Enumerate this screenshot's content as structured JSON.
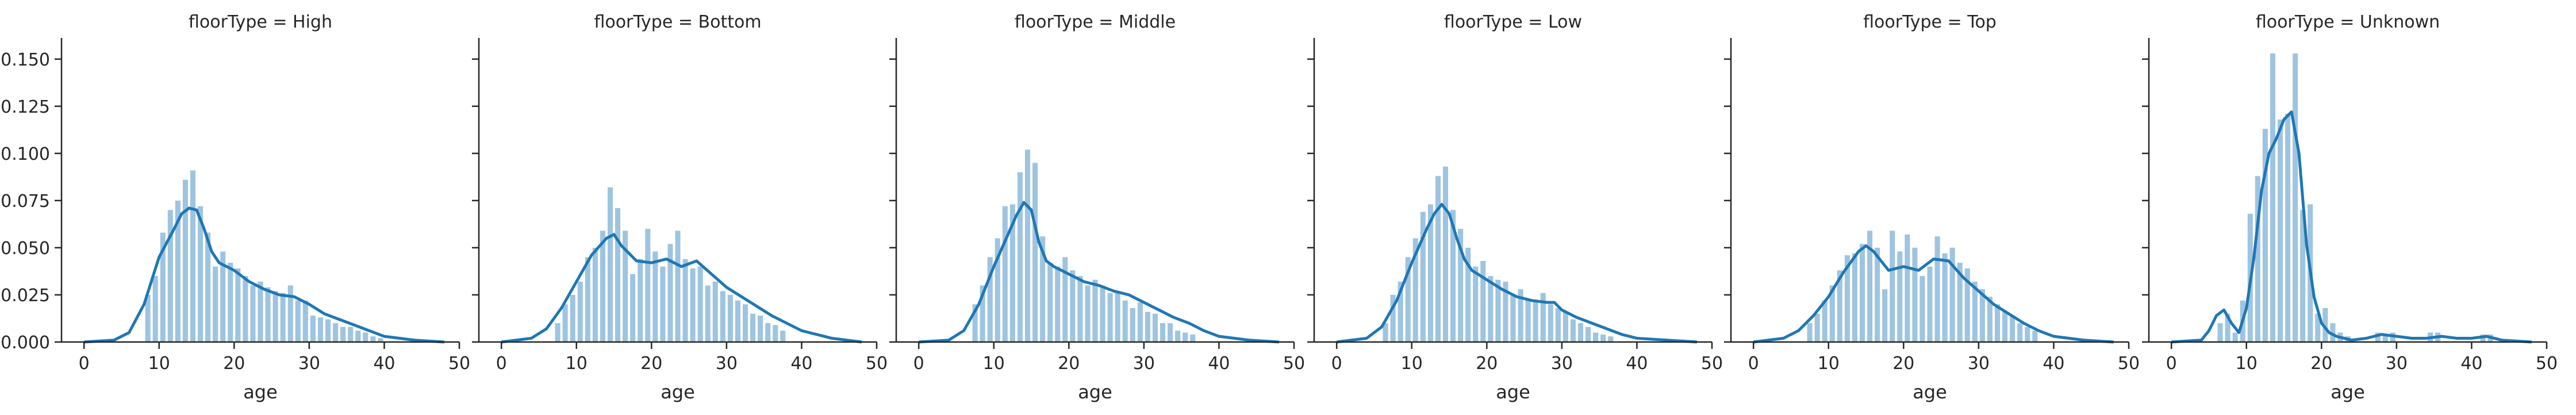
{
  "chart_data": {
    "type": "bar",
    "layout": "facet-grid",
    "shared_y": true,
    "grid": false,
    "xlabel": "age",
    "ylabel": "",
    "xlim": [
      -3,
      50
    ],
    "ylim": [
      0,
      0.16
    ],
    "xticks": [
      "0",
      "10",
      "20",
      "30",
      "40",
      "50"
    ],
    "yticks": [
      "0.000",
      "0.025",
      "0.050",
      "0.075",
      "0.100",
      "0.125",
      "0.150"
    ],
    "colors": {
      "bars": "#9ec4e0",
      "kde": "#1f77b4",
      "axis": "#262626"
    },
    "facets": [
      {
        "title": "floorType = High",
        "hist_x": [
          8.5,
          9.5,
          10.5,
          11.5,
          12.5,
          13.5,
          14.5,
          15.5,
          16.5,
          17.5,
          18.5,
          19.5,
          20.5,
          21.5,
          22.5,
          23.5,
          24.5,
          25.5,
          26.5,
          27.5,
          28.5,
          29.5,
          30.5,
          31.5,
          32.5,
          33.5,
          34.5,
          35.5,
          36.5,
          37.5,
          38.5,
          39.5
        ],
        "hist_y": [
          0.025,
          0.035,
          0.058,
          0.07,
          0.075,
          0.086,
          0.091,
          0.072,
          0.058,
          0.04,
          0.048,
          0.042,
          0.039,
          0.035,
          0.03,
          0.032,
          0.029,
          0.027,
          0.026,
          0.03,
          0.022,
          0.022,
          0.014,
          0.013,
          0.012,
          0.01,
          0.008,
          0.008,
          0.006,
          0.005,
          0.003,
          0.002
        ],
        "kde_x": [
          0,
          4,
          6,
          8,
          10,
          12,
          13,
          14,
          15,
          16,
          17,
          18,
          20,
          22,
          24,
          26,
          28,
          30,
          32,
          34,
          36,
          38,
          40,
          44,
          48
        ],
        "kde_y": [
          0.0,
          0.001,
          0.005,
          0.02,
          0.045,
          0.06,
          0.068,
          0.071,
          0.07,
          0.06,
          0.048,
          0.042,
          0.038,
          0.032,
          0.028,
          0.025,
          0.024,
          0.02,
          0.015,
          0.012,
          0.009,
          0.006,
          0.003,
          0.001,
          0.0
        ]
      },
      {
        "title": "floorType = Bottom",
        "hist_x": [
          7.5,
          8.5,
          9.5,
          10.5,
          11.5,
          12.5,
          13.5,
          14.5,
          15.5,
          16.5,
          17.5,
          18.5,
          19.5,
          20.5,
          21.5,
          22.5,
          23.5,
          24.5,
          25.5,
          26.5,
          27.5,
          28.5,
          29.5,
          30.5,
          31.5,
          32.5,
          33.5,
          34.5,
          35.5,
          36.5,
          37.5
        ],
        "hist_y": [
          0.01,
          0.02,
          0.025,
          0.032,
          0.045,
          0.05,
          0.059,
          0.082,
          0.071,
          0.059,
          0.036,
          0.044,
          0.06,
          0.048,
          0.04,
          0.052,
          0.059,
          0.044,
          0.039,
          0.04,
          0.03,
          0.032,
          0.027,
          0.025,
          0.022,
          0.02,
          0.015,
          0.014,
          0.01,
          0.009,
          0.006
        ],
        "kde_x": [
          0,
          4,
          6,
          8,
          10,
          12,
          14,
          15,
          16,
          18,
          20,
          22,
          24,
          26,
          28,
          30,
          32,
          34,
          36,
          38,
          40,
          44,
          48
        ],
        "kde_y": [
          0.0,
          0.002,
          0.007,
          0.018,
          0.032,
          0.046,
          0.055,
          0.057,
          0.051,
          0.043,
          0.042,
          0.044,
          0.04,
          0.043,
          0.036,
          0.029,
          0.024,
          0.019,
          0.014,
          0.01,
          0.006,
          0.002,
          0.0
        ]
      },
      {
        "title": "floorType = Middle",
        "hist_x": [
          7.5,
          8.5,
          9.5,
          10.5,
          11.5,
          12.5,
          13.5,
          14.5,
          15.5,
          16.5,
          17.5,
          18.5,
          19.5,
          20.5,
          21.5,
          22.5,
          23.5,
          24.5,
          25.5,
          26.5,
          27.5,
          28.5,
          29.5,
          30.5,
          31.5,
          32.5,
          33.5,
          34.5,
          35.5,
          36.5
        ],
        "hist_y": [
          0.02,
          0.03,
          0.045,
          0.055,
          0.072,
          0.073,
          0.09,
          0.102,
          0.095,
          0.056,
          0.042,
          0.04,
          0.045,
          0.038,
          0.035,
          0.03,
          0.033,
          0.03,
          0.026,
          0.027,
          0.022,
          0.018,
          0.021,
          0.016,
          0.015,
          0.01,
          0.01,
          0.006,
          0.005,
          0.004
        ],
        "kde_x": [
          0,
          4,
          6,
          8,
          10,
          12,
          13,
          14,
          15,
          16,
          17,
          18,
          20,
          22,
          24,
          26,
          28,
          30,
          32,
          34,
          36,
          38,
          40,
          44,
          48
        ],
        "kde_y": [
          0.0,
          0.001,
          0.006,
          0.02,
          0.04,
          0.058,
          0.067,
          0.074,
          0.07,
          0.053,
          0.043,
          0.04,
          0.036,
          0.032,
          0.03,
          0.027,
          0.025,
          0.021,
          0.017,
          0.013,
          0.01,
          0.006,
          0.003,
          0.001,
          0.0
        ]
      },
      {
        "title": "floorType = Low",
        "hist_x": [
          6.5,
          7.5,
          8.5,
          9.5,
          10.5,
          11.5,
          12.5,
          13.5,
          14.5,
          15.5,
          16.5,
          17.5,
          18.5,
          19.5,
          20.5,
          21.5,
          22.5,
          23.5,
          24.5,
          25.5,
          26.5,
          27.5,
          28.5,
          29.5,
          30.5,
          31.5,
          32.5,
          33.5,
          34.5,
          35.5,
          36.5
        ],
        "hist_y": [
          0.01,
          0.025,
          0.032,
          0.045,
          0.055,
          0.069,
          0.073,
          0.088,
          0.093,
          0.07,
          0.06,
          0.05,
          0.04,
          0.043,
          0.035,
          0.033,
          0.032,
          0.025,
          0.028,
          0.023,
          0.022,
          0.026,
          0.02,
          0.018,
          0.016,
          0.012,
          0.01,
          0.008,
          0.005,
          0.004,
          0.003
        ],
        "kde_x": [
          0,
          4,
          6,
          8,
          10,
          12,
          13,
          14,
          15,
          16,
          17,
          18,
          20,
          22,
          24,
          26,
          28,
          29,
          30,
          32,
          34,
          36,
          38,
          40,
          44,
          48
        ],
        "kde_y": [
          0.0,
          0.002,
          0.008,
          0.022,
          0.042,
          0.06,
          0.068,
          0.073,
          0.068,
          0.055,
          0.044,
          0.038,
          0.033,
          0.028,
          0.024,
          0.022,
          0.021,
          0.021,
          0.017,
          0.013,
          0.01,
          0.007,
          0.004,
          0.002,
          0.001,
          0.0
        ]
      },
      {
        "title": "floorType = Top",
        "hist_x": [
          7.5,
          8.5,
          9.5,
          10.5,
          11.5,
          12.5,
          13.5,
          14.5,
          15.5,
          16.5,
          17.5,
          18.5,
          19.5,
          20.5,
          21.5,
          22.5,
          23.5,
          24.5,
          25.5,
          26.5,
          27.5,
          28.5,
          29.5,
          30.5,
          31.5,
          32.5,
          33.5,
          34.5,
          35.5,
          36.5,
          37.5
        ],
        "hist_y": [
          0.01,
          0.015,
          0.022,
          0.03,
          0.038,
          0.046,
          0.047,
          0.052,
          0.059,
          0.05,
          0.028,
          0.059,
          0.048,
          0.057,
          0.05,
          0.035,
          0.04,
          0.056,
          0.047,
          0.05,
          0.042,
          0.039,
          0.032,
          0.028,
          0.024,
          0.02,
          0.016,
          0.014,
          0.01,
          0.008,
          0.006
        ],
        "kde_x": [
          0,
          4,
          6,
          8,
          10,
          12,
          14,
          15,
          16,
          18,
          20,
          22,
          24,
          26,
          28,
          30,
          32,
          34,
          36,
          38,
          40,
          44,
          48
        ],
        "kde_y": [
          0.0,
          0.002,
          0.006,
          0.014,
          0.024,
          0.037,
          0.048,
          0.051,
          0.048,
          0.038,
          0.04,
          0.038,
          0.044,
          0.043,
          0.034,
          0.027,
          0.02,
          0.015,
          0.01,
          0.006,
          0.003,
          0.001,
          0.0
        ]
      },
      {
        "title": "floorType = Unknown",
        "hist_x": [
          6.5,
          7.5,
          8.5,
          9.5,
          10.5,
          11.5,
          12.5,
          13.5,
          14.5,
          15.5,
          16.5,
          17.5,
          18.5,
          19.5,
          20.5,
          21.5,
          22.5,
          23.5,
          27.5,
          28.5,
          29.5,
          34.5,
          35.5,
          41.5,
          42.5
        ],
        "hist_y": [
          0.01,
          0.015,
          0.005,
          0.022,
          0.068,
          0.088,
          0.113,
          0.153,
          0.118,
          0.121,
          0.153,
          0.07,
          0.073,
          0.015,
          0.018,
          0.01,
          0.005,
          0.003,
          0.005,
          0.003,
          0.005,
          0.005,
          0.005,
          0.004,
          0.004
        ],
        "kde_x": [
          0,
          4,
          5,
          6,
          7,
          8,
          9,
          10,
          11,
          12,
          13,
          14,
          15,
          16,
          17,
          18,
          19,
          20,
          21,
          22,
          24,
          26,
          28,
          30,
          32,
          34,
          36,
          38,
          40,
          42,
          44,
          48
        ],
        "kde_y": [
          0.0,
          0.001,
          0.006,
          0.014,
          0.017,
          0.01,
          0.005,
          0.018,
          0.045,
          0.08,
          0.1,
          0.108,
          0.118,
          0.122,
          0.1,
          0.052,
          0.024,
          0.01,
          0.005,
          0.003,
          0.001,
          0.002,
          0.004,
          0.003,
          0.002,
          0.002,
          0.003,
          0.002,
          0.002,
          0.003,
          0.001,
          0.0
        ]
      }
    ]
  }
}
